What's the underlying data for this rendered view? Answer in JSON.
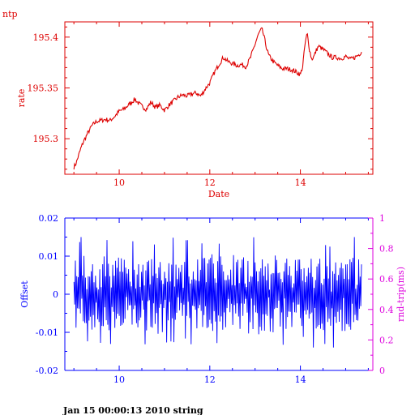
{
  "page": {
    "corner_label": "ntp",
    "footer": "Jan 15 00:00:13 2010 string"
  },
  "colors": {
    "top": "#dd0000",
    "offset": "#0000ff",
    "roundtrip": "#dd00dd"
  },
  "chart_data": [
    {
      "type": "line",
      "name": "rate-panel",
      "xlabel": "Date",
      "ylabel": "rate",
      "xlim": [
        8.8,
        15.6
      ],
      "ylim": [
        195.265,
        195.415
      ],
      "xticks": [
        10,
        12,
        14
      ],
      "xtick_labels": [
        "10",
        "12",
        "14"
      ],
      "yticks": [
        195.3,
        195.35,
        195.4
      ],
      "ytick_labels": [
        "195.3",
        "195.35",
        "195.4"
      ],
      "series": [
        {
          "color": "#dd0000",
          "x": [
            9.0,
            9.05,
            9.1,
            9.15,
            9.2,
            9.3,
            9.4,
            9.5,
            9.6,
            9.7,
            9.8,
            9.9,
            10.0,
            10.1,
            10.2,
            10.3,
            10.35,
            10.4,
            10.5,
            10.6,
            10.7,
            10.8,
            10.9,
            11.0,
            11.1,
            11.2,
            11.3,
            11.4,
            11.5,
            11.6,
            11.7,
            11.8,
            11.9,
            12.0,
            12.1,
            12.2,
            12.3,
            12.4,
            12.5,
            12.6,
            12.7,
            12.8,
            12.9,
            13.0,
            13.05,
            13.1,
            13.15,
            13.2,
            13.25,
            13.3,
            13.4,
            13.5,
            13.6,
            13.7,
            13.8,
            13.9,
            14.0,
            14.05,
            14.1,
            14.15,
            14.2,
            14.25,
            14.3,
            14.35,
            14.4,
            14.5,
            14.6,
            14.7,
            14.8,
            14.9,
            15.0,
            15.1,
            15.2,
            15.3,
            15.35
          ],
          "y": [
            195.272,
            195.276,
            195.283,
            195.29,
            195.296,
            195.305,
            195.313,
            195.317,
            195.318,
            195.319,
            195.318,
            195.322,
            195.327,
            195.329,
            195.333,
            195.337,
            195.339,
            195.336,
            195.332,
            195.329,
            195.336,
            195.331,
            195.333,
            195.328,
            195.333,
            195.337,
            195.341,
            195.343,
            195.342,
            195.344,
            195.345,
            195.342,
            195.349,
            195.355,
            195.365,
            195.373,
            195.38,
            195.376,
            195.374,
            195.372,
            195.373,
            195.371,
            195.38,
            195.393,
            195.4,
            195.405,
            195.408,
            195.4,
            195.39,
            195.382,
            195.376,
            195.372,
            195.369,
            195.369,
            195.368,
            195.366,
            195.363,
            195.371,
            195.392,
            195.404,
            195.388,
            195.378,
            195.381,
            195.387,
            195.391,
            195.388,
            195.384,
            195.38,
            195.38,
            195.379,
            195.381,
            195.378,
            195.38,
            195.383,
            195.386
          ]
        }
      ]
    },
    {
      "type": "line",
      "name": "offset-panel",
      "xlabel": "",
      "ylabel": "Offset",
      "y2label": "rnd-trip(ms)",
      "xlim": [
        8.8,
        15.6
      ],
      "ylim": [
        -0.02,
        0.02
      ],
      "y2lim": [
        0,
        1
      ],
      "xticks": [
        10,
        12,
        14
      ],
      "xtick_labels": [
        "10",
        "12",
        "14"
      ],
      "yticks": [
        -0.02,
        -0.01,
        0,
        0.01,
        0.02
      ],
      "ytick_labels": [
        "-0.02",
        "-0.01",
        "0",
        "0.01",
        "0.02"
      ],
      "y2ticks": [
        0,
        0.2,
        0.4,
        0.6,
        0.8,
        1
      ],
      "y2tick_labels": [
        "0",
        "0.2",
        "0.4",
        "0.6",
        "0.8",
        "1"
      ],
      "series": [
        {
          "color": "#0000ff",
          "x_start": 9.0,
          "x_end": 15.35,
          "points": 400,
          "amplitude_min": -0.014,
          "amplitude_max": 0.015,
          "typical_min": -0.009,
          "typical_max": 0.01
        }
      ]
    }
  ]
}
